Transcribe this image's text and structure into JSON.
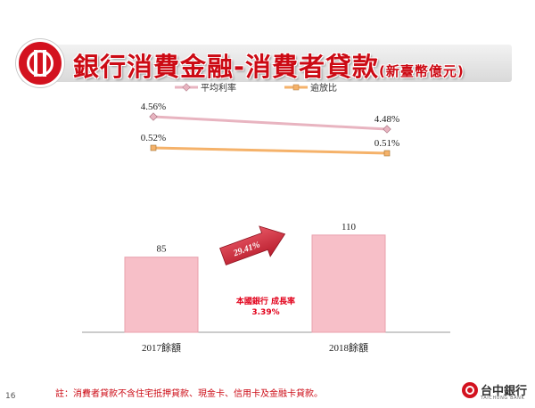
{
  "page": {
    "title": "銀行消費金融-消費者貸款",
    "title_unit": "(新臺幣億元)",
    "footnote": "註：消費者貸款不含住宅抵押貸款、現金卡、信用卡及金融卡貸款。",
    "page_number": "16"
  },
  "brand": {
    "name": "台中銀行",
    "english": "TAICHUNG BANK"
  },
  "colors": {
    "title_red": "#cc0a14",
    "rate_line": "#e8b4c0",
    "overdue_line": "#f5b26a",
    "bar_fill": "#f7bfc8",
    "bar_stroke": "#e8a0ad",
    "arrow": "#cc2b3b"
  },
  "chart_data": [
    {
      "type": "line",
      "categories": [
        "2017",
        "2018"
      ],
      "series": [
        {
          "name": "平均利率",
          "values": [
            4.56,
            4.48
          ],
          "labels": [
            "4.56%",
            "4.48%"
          ]
        },
        {
          "name": "逾放比",
          "values": [
            0.52,
            0.51
          ],
          "labels": [
            "0.52%",
            "0.51%"
          ]
        }
      ],
      "grid": false,
      "legend": "top"
    },
    {
      "type": "bar",
      "categories": [
        "2017餘額",
        "2018餘額"
      ],
      "values": [
        85,
        110
      ],
      "labels": [
        "85",
        "110"
      ],
      "growth_arrow_label": "29.41%",
      "annotation": [
        "本國銀行 成長率",
        "3.39%"
      ],
      "grid": false
    }
  ]
}
